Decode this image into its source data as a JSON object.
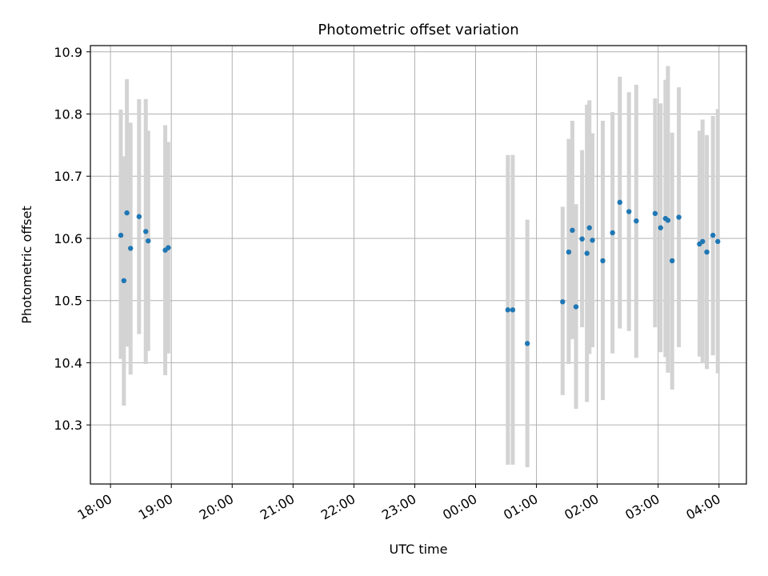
{
  "chart_data": {
    "type": "scatter",
    "title": "Photometric offset variation",
    "xlabel": "UTC time",
    "ylabel": "Photometric offset",
    "x_ticks": [
      "18:00",
      "19:00",
      "20:00",
      "21:00",
      "22:00",
      "23:00",
      "00:00",
      "01:00",
      "02:00",
      "03:00",
      "04:00"
    ],
    "y_ticks": [
      "10.3",
      "10.4",
      "10.5",
      "10.6",
      "10.7",
      "10.8",
      "10.9"
    ],
    "y_tick_values": [
      10.3,
      10.4,
      10.5,
      10.6,
      10.7,
      10.8,
      10.9
    ],
    "x_axis_unit": "hours from 18:00 UTC",
    "xlim": [
      -0.33,
      10.45
    ],
    "ylim": [
      10.205,
      10.91
    ],
    "grid": true,
    "marker_color": "#1f77b4",
    "errorbar_color": "#d3d3d3",
    "points": [
      {
        "x": 0.17,
        "y": 10.605,
        "lo": 10.406,
        "hi": 10.807
      },
      {
        "x": 0.22,
        "y": 10.532,
        "lo": 10.331,
        "hi": 10.732
      },
      {
        "x": 0.27,
        "y": 10.641,
        "lo": 10.426,
        "hi": 10.856
      },
      {
        "x": 0.33,
        "y": 10.584,
        "lo": 10.381,
        "hi": 10.786
      },
      {
        "x": 0.47,
        "y": 10.635,
        "lo": 10.446,
        "hi": 10.824
      },
      {
        "x": 0.58,
        "y": 10.611,
        "lo": 10.398,
        "hi": 10.824
      },
      {
        "x": 0.62,
        "y": 10.596,
        "lo": 10.419,
        "hi": 10.773
      },
      {
        "x": 0.9,
        "y": 10.581,
        "lo": 10.38,
        "hi": 10.782
      },
      {
        "x": 0.95,
        "y": 10.585,
        "lo": 10.415,
        "hi": 10.755
      },
      {
        "x": 6.53,
        "y": 10.485,
        "lo": 10.236,
        "hi": 10.734
      },
      {
        "x": 6.61,
        "y": 10.485,
        "lo": 10.236,
        "hi": 10.734
      },
      {
        "x": 6.85,
        "y": 10.431,
        "lo": 10.232,
        "hi": 10.63
      },
      {
        "x": 7.43,
        "y": 10.498,
        "lo": 10.348,
        "hi": 10.651
      },
      {
        "x": 7.53,
        "y": 10.578,
        "lo": 10.398,
        "hi": 10.76
      },
      {
        "x": 7.59,
        "y": 10.613,
        "lo": 10.438,
        "hi": 10.789
      },
      {
        "x": 7.65,
        "y": 10.49,
        "lo": 10.326,
        "hi": 10.655
      },
      {
        "x": 7.75,
        "y": 10.599,
        "lo": 10.457,
        "hi": 10.742
      },
      {
        "x": 7.83,
        "y": 10.576,
        "lo": 10.337,
        "hi": 10.815
      },
      {
        "x": 7.87,
        "y": 10.617,
        "lo": 10.414,
        "hi": 10.822
      },
      {
        "x": 7.92,
        "y": 10.597,
        "lo": 10.425,
        "hi": 10.769
      },
      {
        "x": 8.09,
        "y": 10.564,
        "lo": 10.34,
        "hi": 10.789
      },
      {
        "x": 8.25,
        "y": 10.609,
        "lo": 10.415,
        "hi": 10.803
      },
      {
        "x": 8.37,
        "y": 10.658,
        "lo": 10.455,
        "hi": 10.86
      },
      {
        "x": 8.52,
        "y": 10.643,
        "lo": 10.451,
        "hi": 10.835
      },
      {
        "x": 8.64,
        "y": 10.628,
        "lo": 10.408,
        "hi": 10.847
      },
      {
        "x": 8.95,
        "y": 10.64,
        "lo": 10.457,
        "hi": 10.825
      },
      {
        "x": 9.04,
        "y": 10.617,
        "lo": 10.417,
        "hi": 10.817
      },
      {
        "x": 9.12,
        "y": 10.632,
        "lo": 10.409,
        "hi": 10.855
      },
      {
        "x": 9.16,
        "y": 10.629,
        "lo": 10.384,
        "hi": 10.877
      },
      {
        "x": 9.23,
        "y": 10.564,
        "lo": 10.357,
        "hi": 10.77
      },
      {
        "x": 9.34,
        "y": 10.634,
        "lo": 10.425,
        "hi": 10.843
      },
      {
        "x": 9.68,
        "y": 10.591,
        "lo": 10.41,
        "hi": 10.773
      },
      {
        "x": 9.73,
        "y": 10.595,
        "lo": 10.399,
        "hi": 10.791
      },
      {
        "x": 9.8,
        "y": 10.578,
        "lo": 10.39,
        "hi": 10.766
      },
      {
        "x": 9.9,
        "y": 10.605,
        "lo": 10.412,
        "hi": 10.797
      },
      {
        "x": 9.98,
        "y": 10.595,
        "lo": 10.383,
        "hi": 10.808
      }
    ]
  }
}
